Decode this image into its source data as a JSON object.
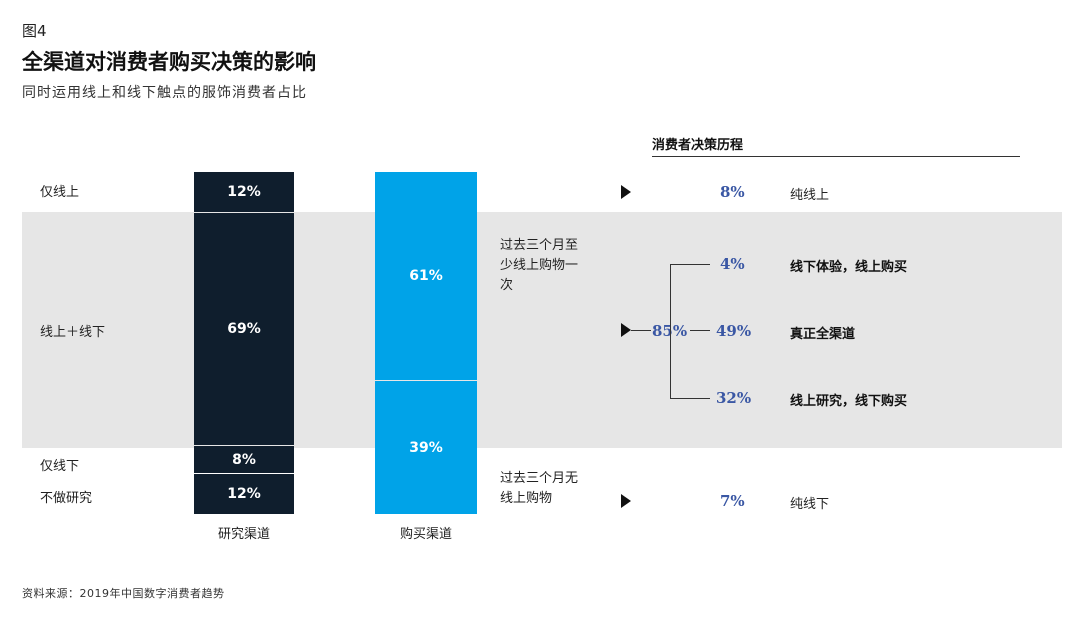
{
  "figure_label": "图4",
  "title": "全渠道对消费者购买决策的影响",
  "subtitle": "同时运用线上和线下触点的服饰消费者占比",
  "row_labels": [
    "仅线上",
    "线上＋线下",
    "仅线下",
    "不做研究"
  ],
  "chart_data": {
    "type": "bar",
    "stacked": true,
    "categories": [
      "研究渠道",
      "购买渠道"
    ],
    "series": [
      {
        "name": "研究渠道",
        "segments": [
          {
            "label": "仅线上",
            "value": 12
          },
          {
            "label": "线上＋线下",
            "value": 69
          },
          {
            "label": "仅线下",
            "value": 8
          },
          {
            "label": "不做研究",
            "value": 12
          }
        ],
        "color": "#0f1e2d"
      },
      {
        "name": "购买渠道",
        "segments": [
          {
            "label": "过去三个月至少线上购物一次",
            "value": 61
          },
          {
            "label": "过去三个月无线上购物",
            "value": 39
          }
        ],
        "color": "#00a3e8"
      }
    ],
    "value_labels_research": [
      "12%",
      "69%",
      "8%",
      "12%"
    ],
    "value_labels_purchase": [
      "61%",
      "39%"
    ]
  },
  "bracket_labels": {
    "online": "过去三个月至少线上购物一次",
    "offline": "过去三个月无线上购物"
  },
  "journey": {
    "title": "消费者决策历程",
    "online_only": {
      "pct": "8%",
      "label": "纯线上"
    },
    "omni_total": "85%",
    "omni": [
      {
        "pct": "4%",
        "label": "线下体验，线上购买"
      },
      {
        "pct": "49%",
        "label": "真正全渠道"
      },
      {
        "pct": "32%",
        "label": "线上研究，线下购买"
      }
    ],
    "offline_only": {
      "pct": "7%",
      "label": "纯线下"
    }
  },
  "colors": {
    "research_bar": "#0f1e2d",
    "purchase_bar": "#00a3e8",
    "band": "#e6e6e6",
    "pct_text": "#3a57a4"
  },
  "source": "资料来源：2019年中国数字消费者趋势"
}
